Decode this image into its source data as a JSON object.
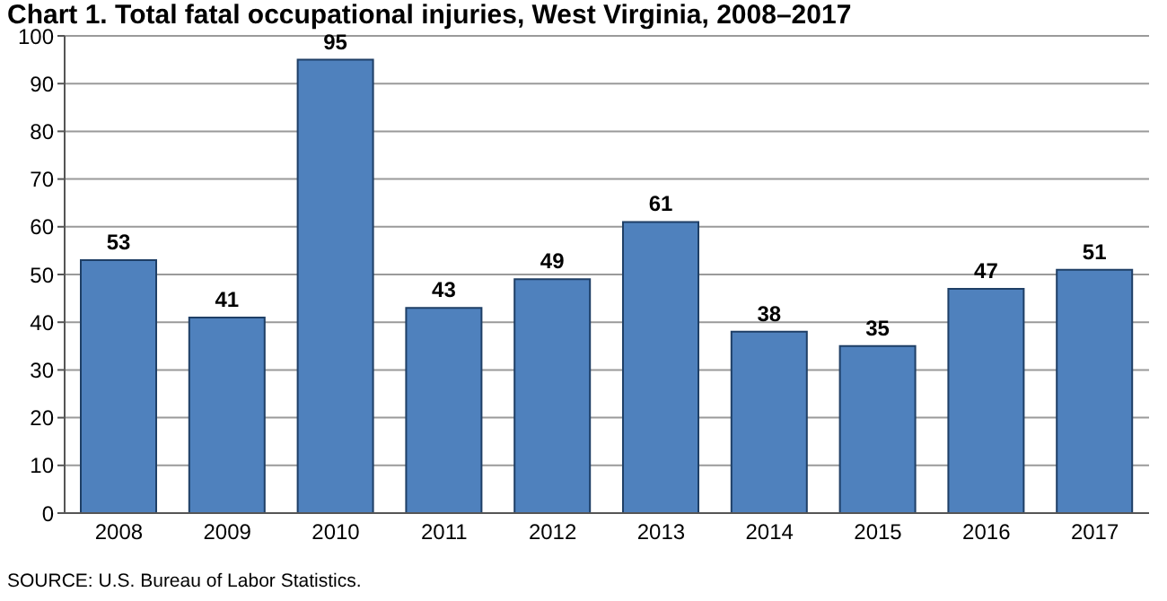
{
  "chart_data": {
    "type": "bar",
    "title": "Chart 1. Total fatal occupational injuries, West Virginia, 2008–2017",
    "categories": [
      "2008",
      "2009",
      "2010",
      "2011",
      "2012",
      "2013",
      "2014",
      "2015",
      "2016",
      "2017"
    ],
    "values": [
      53,
      41,
      95,
      43,
      49,
      61,
      38,
      35,
      47,
      51
    ],
    "color": "#4f81bd",
    "ylim": [
      0,
      100
    ],
    "yticks": [
      0,
      10,
      20,
      30,
      40,
      50,
      60,
      70,
      80,
      90,
      100
    ],
    "grid": "y",
    "data_labels": true,
    "annotations": [
      "SOURCE: U.S. Bureau of Labor Statistics."
    ]
  }
}
